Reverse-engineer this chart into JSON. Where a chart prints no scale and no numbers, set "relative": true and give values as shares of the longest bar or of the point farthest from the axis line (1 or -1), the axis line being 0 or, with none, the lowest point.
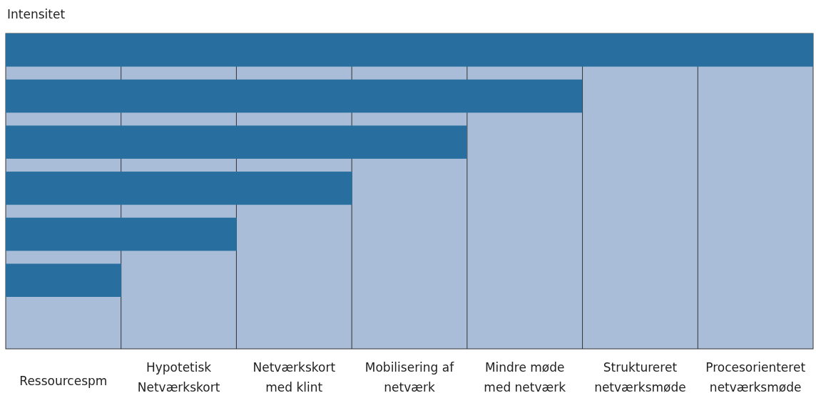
{
  "chart_data": {
    "type": "bar",
    "orientation": "horizontal",
    "relative": true,
    "ylabel": "Intensitet",
    "categories": [
      null,
      null,
      null,
      null,
      null,
      null
    ],
    "values": [
      1,
      0.714,
      0.571,
      0.429,
      0.286,
      0.143
    ],
    "color": "#286fa0",
    "annotations": [
      "Ressourcespm",
      "Hypotetisk\nNetværkskort",
      "Netværkskort\nmed klint",
      "Mobilisering af\nnetværk",
      "Mindre møde\nmed netværk",
      "Struktureret\nnetværksmøde",
      "Procesorienteret\nnetværksmøde"
    ]
  }
}
